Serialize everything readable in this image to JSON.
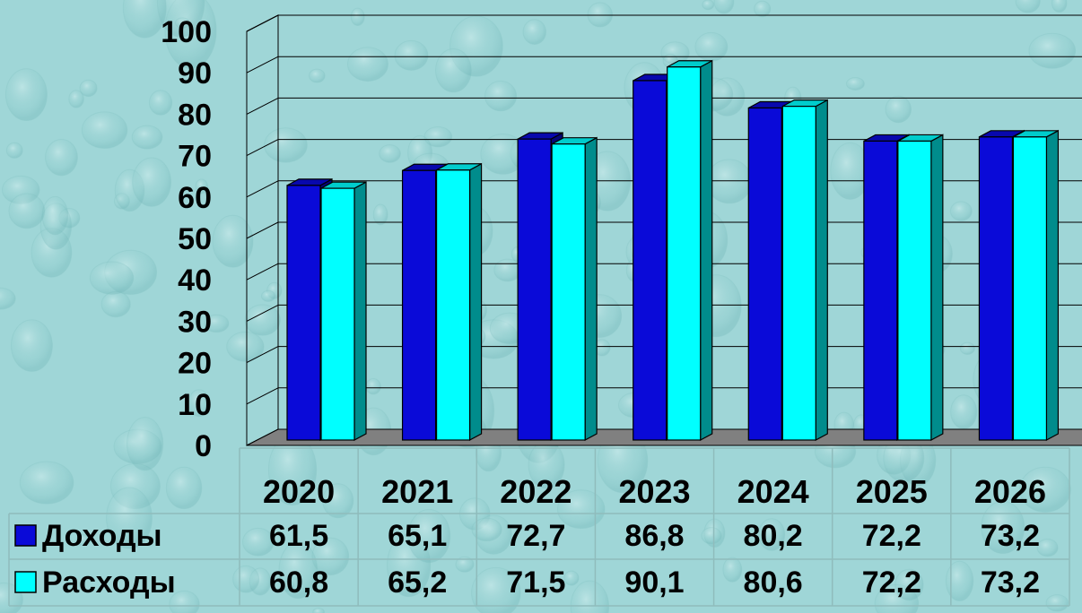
{
  "chart_data": {
    "type": "bar",
    "categories": [
      "2020",
      "2021",
      "2022",
      "2023",
      "2024",
      "2025",
      "2026"
    ],
    "series": [
      {
        "name": "Доходы",
        "values": [
          61.5,
          65.1,
          72.7,
          86.8,
          80.2,
          72.2,
          73.2
        ],
        "labels": [
          "61,5",
          "65,1",
          "72,7",
          "86,8",
          "80,2",
          "72,2",
          "73,2"
        ]
      },
      {
        "name": "Расходы",
        "values": [
          60.8,
          65.2,
          71.5,
          90.1,
          80.6,
          72.2,
          73.2
        ],
        "labels": [
          "60,8",
          "65,2",
          "71,5",
          "90,1",
          "80,6",
          "72,2",
          "73,2"
        ]
      }
    ],
    "yticks": [
      "0",
      "10",
      "20",
      "30",
      "40",
      "50",
      "60",
      "70",
      "80",
      "90",
      "100"
    ],
    "ylim": [
      0,
      100
    ],
    "grid": true,
    "legend": "data-table-bottom",
    "style": "3d-clustered-bar"
  },
  "colors": {
    "background": "#9fd6d7",
    "series1": "#0a0ad8",
    "series2": "#00ffff",
    "floor": "#808080",
    "grid": "#000000",
    "text": "#000000"
  }
}
